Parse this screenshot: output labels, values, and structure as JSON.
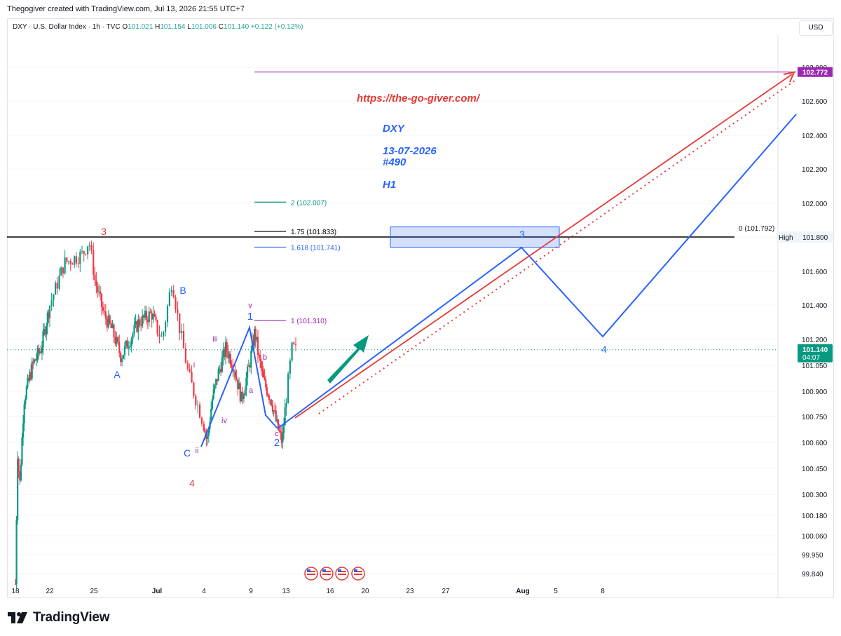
{
  "header": {
    "title": "Thegogiver created with TradingView.com, Jul 13, 2026 21:55 UTC+7"
  },
  "legend": {
    "symbol": "DXY · U.S. Dollar Index · 1h · TVC",
    "open_label": "O",
    "open": "101.021",
    "high_label": "H",
    "high": "101.154",
    "low_label": "L",
    "low": "101.006",
    "close_label": "C",
    "close": "101.140",
    "change": "+0.122 (+0.12%)"
  },
  "currency_button": "USD",
  "chart_data": {
    "type": "candlestick",
    "symbol": "DXY",
    "interval": "1h",
    "ylim": [
      99.78,
      102.9
    ],
    "y_ticks": [
      "102.800",
      "102.600",
      "102.400",
      "102.200",
      "102.000",
      "101.800",
      "101.600",
      "101.400",
      "101.200",
      "101.050",
      "100.900",
      "100.750",
      "100.600",
      "100.450",
      "100.300",
      "100.180",
      "100.060",
      "99.950",
      "99.840"
    ],
    "x_ticks": [
      "18",
      "22",
      "25",
      "Jul",
      "4",
      "9",
      "13",
      "16",
      "20",
      "23",
      "27",
      "Aug",
      "5",
      "8"
    ],
    "price_line": {
      "value": 101.14,
      "label": "101.140",
      "countdown": "04:07",
      "color": "#089981"
    },
    "target_label": {
      "value": 102.772,
      "label": "102.772",
      "color": "#9c27b0"
    },
    "high_label": {
      "text": "High",
      "value_label": "101.800"
    },
    "horizontal_lines": [
      {
        "name": "high-line",
        "value": 101.8,
        "label": "0 (101.792)",
        "color": "#000000"
      },
      {
        "name": "target-line",
        "value": 102.772,
        "label": "",
        "color": "#9c27b0"
      }
    ],
    "fib_levels": [
      {
        "label": "2 (102.007)",
        "value": 102.007,
        "color": "#089981"
      },
      {
        "label": "1.75 (101.833)",
        "value": 101.833,
        "color": "#000000"
      },
      {
        "label": "1.618 (101.741)",
        "value": 101.741,
        "color": "#2962ff"
      },
      {
        "label": "1 (101.310)",
        "value": 101.31,
        "color": "#9c27b0"
      }
    ],
    "target_zone": {
      "low": 101.74,
      "high": 101.86,
      "color": "#2962ff"
    },
    "annotations": {
      "url": "https://the-go-giver.com/",
      "symbol": "DXY",
      "date": "13-07-2026",
      "number": "#490",
      "timeframe": "H1"
    },
    "wave_labels": [
      {
        "text": "3",
        "color": "#e53935"
      },
      {
        "text": "4",
        "color": "#e53935"
      },
      {
        "text": "A",
        "color": "#2962ff"
      },
      {
        "text": "B",
        "color": "#2962ff"
      },
      {
        "text": "C",
        "color": "#2962ff"
      },
      {
        "text": "1",
        "color": "#2962ff"
      },
      {
        "text": "2",
        "color": "#2962ff"
      },
      {
        "text": "3",
        "color": "#2962ff"
      },
      {
        "text": "4",
        "color": "#2962ff"
      },
      {
        "text": "i",
        "color": "#9c27b0"
      },
      {
        "text": "ii",
        "color": "#9c27b0"
      },
      {
        "text": "iii",
        "color": "#9c27b0"
      },
      {
        "text": "iv",
        "color": "#9c27b0"
      },
      {
        "text": "v",
        "color": "#9c27b0"
      },
      {
        "text": "a",
        "color": "#9c27b0"
      },
      {
        "text": "b",
        "color": "#9c27b0"
      },
      {
        "text": "c",
        "color": "#9c27b0"
      }
    ],
    "colors": {
      "up": "#089981",
      "down": "#f23645",
      "projection_blue": "#2962ff",
      "projection_red": "#e53935",
      "arrow": "#089981"
    }
  },
  "branding": {
    "logo_text": "TradingView"
  }
}
